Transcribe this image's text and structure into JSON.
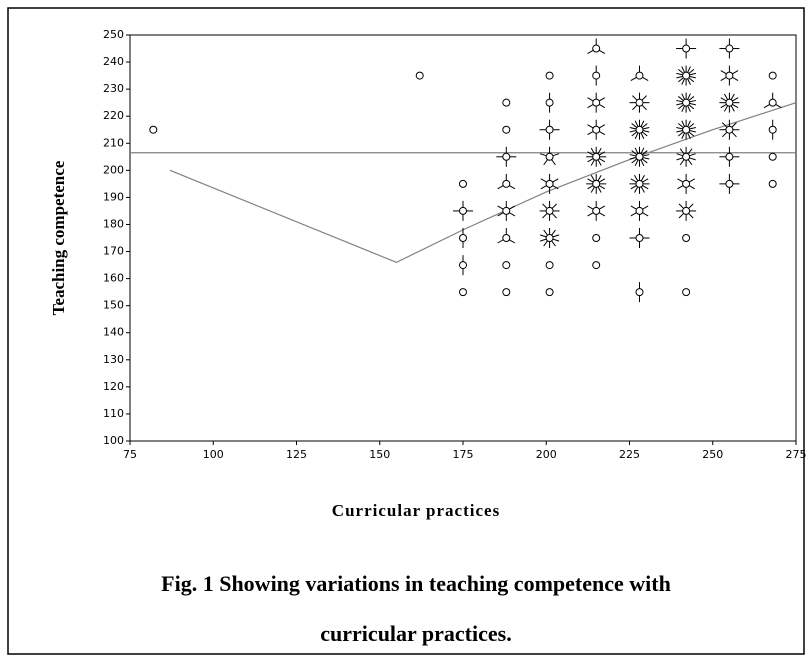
{
  "chart_data": {
    "type": "scatter",
    "y_label": "Teaching competence",
    "x_label": "Curricular practices",
    "caption": [
      "Fig. 1 Showing variations in teaching competence with",
      "curricular practices."
    ],
    "xlim": [
      75,
      275
    ],
    "xticks": [
      75,
      100,
      125,
      150,
      175,
      200,
      225,
      250,
      275
    ],
    "ylim": [
      100,
      250
    ],
    "yticks": [
      100,
      110,
      120,
      130,
      140,
      150,
      160,
      170,
      180,
      190,
      200,
      210,
      220,
      230,
      240,
      250
    ],
    "color": "#000000",
    "reference_line": 206.5,
    "fit_line": {
      "x": [
        87,
        155,
        175,
        200,
        225,
        250,
        275
      ],
      "y": [
        200,
        166,
        178,
        192,
        204,
        215,
        225
      ],
      "color": "#808080"
    },
    "series": [
      {
        "x": [
          82,
          162,
          175,
          175,
          175,
          175,
          175,
          188,
          188,
          188,
          188,
          188,
          188,
          188,
          188,
          201,
          201,
          201,
          201,
          201,
          201,
          201,
          201,
          201,
          215,
          215,
          215,
          215,
          215,
          215,
          215,
          215,
          215,
          228,
          228,
          228,
          228,
          228,
          228,
          228,
          228,
          242,
          242,
          242,
          242,
          242,
          242,
          242,
          242,
          242,
          255,
          255,
          255,
          255,
          255,
          255,
          268,
          268,
          268,
          268,
          268
        ],
        "y": [
          215,
          235,
          195,
          185,
          175,
          165,
          155,
          225,
          215,
          205,
          195,
          185,
          175,
          165,
          155,
          235,
          225,
          215,
          205,
          195,
          185,
          175,
          165,
          155,
          245,
          235,
          225,
          215,
          205,
          195,
          185,
          175,
          165,
          235,
          225,
          215,
          205,
          195,
          185,
          175,
          155,
          245,
          235,
          225,
          215,
          205,
          195,
          185,
          175,
          155,
          245,
          235,
          225,
          215,
          205,
          195,
          235,
          225,
          215,
          205,
          195
        ],
        "counts": [
          1,
          1,
          1,
          4,
          2,
          2,
          1,
          1,
          1,
          4,
          3,
          6,
          3,
          1,
          1,
          1,
          2,
          4,
          5,
          6,
          8,
          10,
          1,
          1,
          3,
          2,
          6,
          6,
          12,
          12,
          6,
          1,
          1,
          3,
          8,
          14,
          14,
          12,
          6,
          4,
          2,
          4,
          14,
          14,
          14,
          10,
          6,
          8,
          1,
          1,
          4,
          6,
          12,
          8,
          4,
          4,
          1,
          3,
          2,
          1,
          1
        ]
      }
    ]
  }
}
